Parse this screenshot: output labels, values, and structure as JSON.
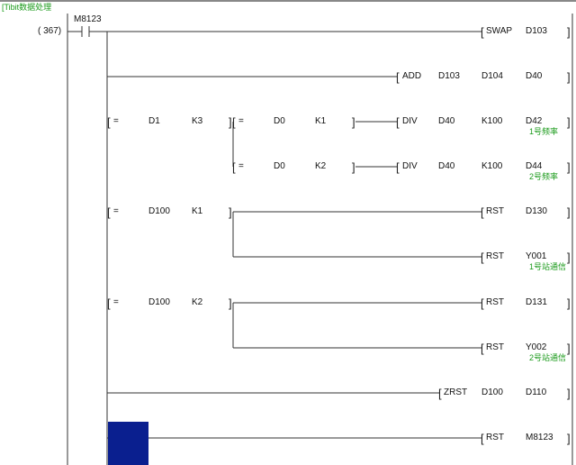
{
  "header_comment": "[Tibit数据处理",
  "step": "( 367)",
  "contact": "M8123",
  "lb": "[",
  "rb": "]",
  "eq": "=",
  "rows": [
    {
      "op": "SWAP",
      "a": "D103"
    },
    {
      "op": "ADD",
      "a": "D103",
      "b": "D104",
      "c": "D40"
    },
    {
      "c1a": "D1",
      "c1b": "K3",
      "c2a": "D0",
      "c2b": "K1",
      "op": "DIV",
      "a": "D40",
      "b": "K100",
      "c": "D42",
      "comment": "1号频率"
    },
    {
      "c2a": "D0",
      "c2b": "K2",
      "op": "DIV",
      "a": "D40",
      "b": "K100",
      "c": "D44",
      "comment": "2号频率"
    },
    {
      "c1a": "D100",
      "c1b": "K1",
      "op": "RST",
      "a": "D130"
    },
    {
      "op": "RST",
      "a": "Y001",
      "comment": "1号站通信"
    },
    {
      "c1a": "D100",
      "c1b": "K2",
      "op": "RST",
      "a": "D131"
    },
    {
      "op": "RST",
      "a": "Y002",
      "comment": "2号站通信"
    },
    {
      "op": "ZRST",
      "a": "D100",
      "b": "D110"
    },
    {
      "op": "RST",
      "a": "M8123"
    }
  ],
  "colors": {
    "cursor": "#0a1f8f",
    "comment": "#1a9a1a"
  }
}
